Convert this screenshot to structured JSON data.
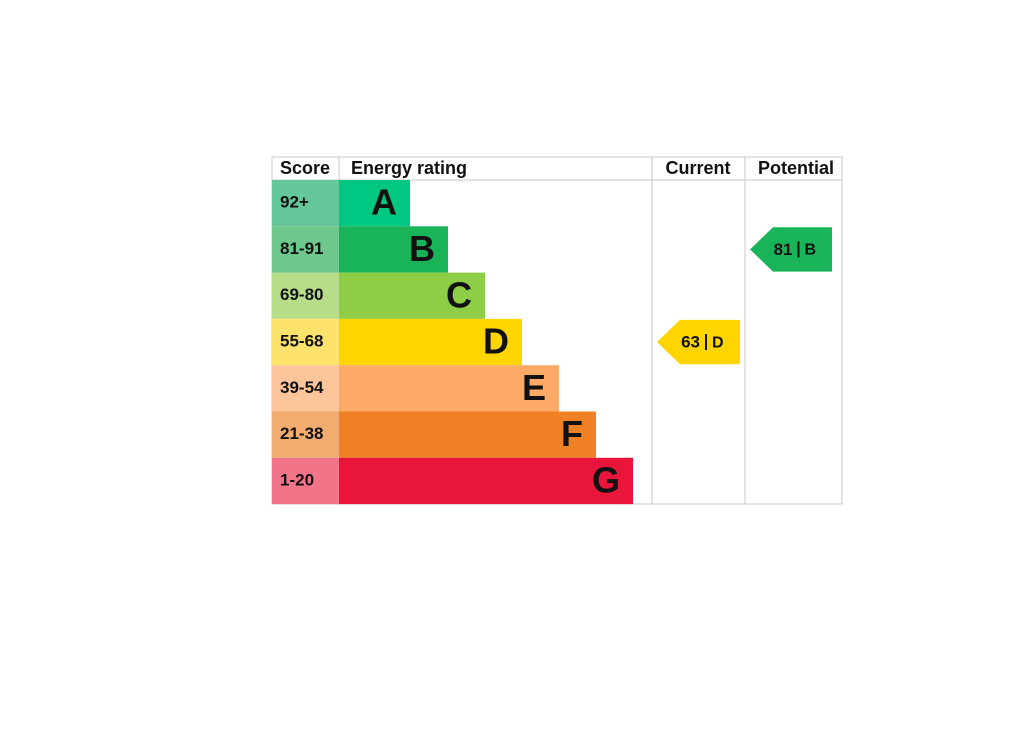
{
  "headers": {
    "score": "Score",
    "rating": "Energy rating",
    "current": "Current",
    "potential": "Potential"
  },
  "bands": [
    {
      "score": "92+",
      "letter": "A",
      "color": "#00c781",
      "light": "#64c89c"
    },
    {
      "score": "81-91",
      "letter": "B",
      "color": "#19b459",
      "light": "#6ec78c"
    },
    {
      "score": "69-80",
      "letter": "C",
      "color": "#8dce46",
      "light": "#b6dd87"
    },
    {
      "score": "55-68",
      "letter": "D",
      "color": "#ffd500",
      "light": "#fde36b"
    },
    {
      "score": "39-54",
      "letter": "E",
      "color": "#fcaa65",
      "light": "#fcc59b"
    },
    {
      "score": "21-38",
      "letter": "F",
      "color": "#ef8023",
      "light": "#f3ac6f"
    },
    {
      "score": "1-20",
      "letter": "G",
      "color": "#e9153b",
      "light": "#f27489"
    }
  ],
  "current": {
    "score": 63,
    "rating": "D"
  },
  "potential": {
    "score": 81,
    "rating": "B"
  }
}
